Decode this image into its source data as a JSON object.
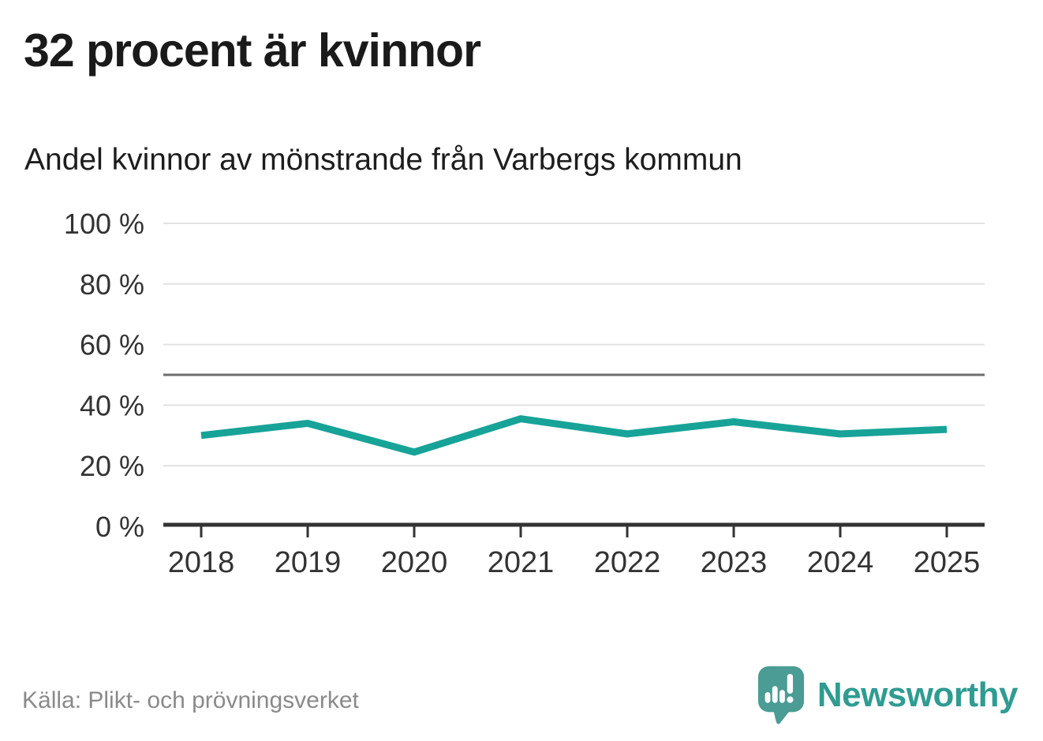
{
  "header": {
    "title": "32 procent är kvinnor",
    "subtitle": "Andel kvinnor av mönstrande från Varbergs kommun"
  },
  "chart_data": {
    "type": "line",
    "title": "32 procent är kvinnor",
    "subtitle": "Andel kvinnor av mönstrande från Varbergs kommun",
    "x": [
      "2018",
      "2019",
      "2020",
      "2021",
      "2022",
      "2023",
      "2024",
      "2025"
    ],
    "series": [
      {
        "name": "Andel kvinnor av mönstrande",
        "color": "#17a398",
        "values": [
          30,
          34,
          24.5,
          35.5,
          30.5,
          34.5,
          30.5,
          32
        ]
      }
    ],
    "xlabel": "",
    "ylabel": "",
    "ylim": [
      0,
      100
    ],
    "yticks": [
      0,
      20,
      40,
      60,
      80,
      100
    ],
    "ytick_suffix": " %",
    "reference_line": 50,
    "grid": true,
    "legend": "none",
    "colors": {
      "line": "#17a398",
      "gridline": "#e2e2e2",
      "reference_line": "#6e6e6e",
      "axis": "#333333",
      "tick_label": "#333333"
    }
  },
  "footer": {
    "source": "Källa: Plikt- och prövningsverket",
    "brand": "Newsworthy",
    "brand_color": "#2f9c92",
    "logo_mark_color": "#4a9c94"
  }
}
